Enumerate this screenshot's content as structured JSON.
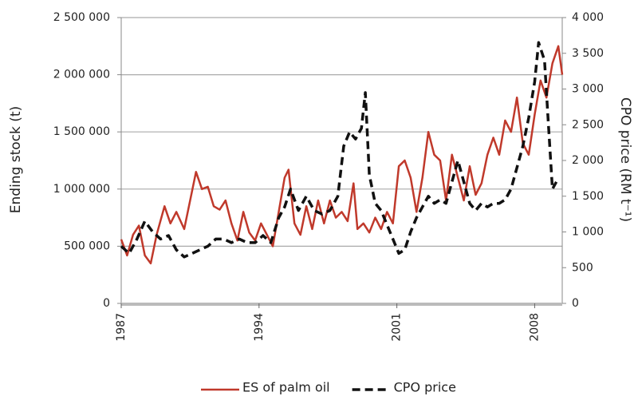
{
  "chart_data": {
    "type": "line",
    "y_label": "Ending stock (t)",
    "y2_label": "CPO price (RM t⁻¹)",
    "xlim": [
      1987,
      2009.4
    ],
    "xticks": [
      1987,
      1994,
      2001,
      2008
    ],
    "ylim": [
      0,
      2500000
    ],
    "yticks": [
      0,
      {
        "value": 500000,
        "label": "500 000"
      },
      {
        "value": 1000000,
        "label": "1 000 000"
      },
      {
        "value": 1500000,
        "label": "1 500 000"
      },
      {
        "value": 2000000,
        "label": "2 000 000"
      },
      {
        "value": 2500000,
        "label": "2 500 000"
      }
    ],
    "y2lim": [
      0,
      4000
    ],
    "y2ticks": [
      0,
      500,
      {
        "value": 1000,
        "label": "1 000"
      },
      {
        "value": 1500,
        "label": "1 500"
      },
      {
        "value": 2000,
        "label": "2 000"
      },
      {
        "value": 2500,
        "label": "2 500"
      },
      {
        "value": 3000,
        "label": "3 000"
      },
      {
        "value": 3500,
        "label": "3 500"
      },
      {
        "value": 4000,
        "label": "4 000"
      }
    ],
    "grid": true,
    "legend": "bottom",
    "series": [
      {
        "name": "ES of palm oil",
        "color": "#c0392b",
        "dash": false,
        "x": [
          1987.0,
          1987.3,
          1987.6,
          1987.9,
          1988.2,
          1988.5,
          1988.8,
          1989.2,
          1989.5,
          1989.8,
          1990.2,
          1990.5,
          1990.8,
          1991.1,
          1991.4,
          1991.7,
          1992.0,
          1992.3,
          1992.6,
          1992.9,
          1993.2,
          1993.5,
          1993.8,
          1994.1,
          1994.4,
          1994.7,
          1995.0,
          1995.3,
          1995.5,
          1995.8,
          1996.1,
          1996.4,
          1996.7,
          1997.0,
          1997.3,
          1997.6,
          1997.9,
          1998.2,
          1998.5,
          1998.8,
          1999.0,
          1999.3,
          1999.6,
          1999.9,
          2000.2,
          2000.5,
          2000.8,
          2001.1,
          2001.4,
          2001.7,
          2002.0,
          2002.3,
          2002.6,
          2002.9,
          2003.2,
          2003.5,
          2003.8,
          2004.1,
          2004.4,
          2004.7,
          2005.0,
          2005.3,
          2005.6,
          2005.9,
          2006.2,
          2006.5,
          2006.8,
          2007.1,
          2007.4,
          2007.7,
          2008.0,
          2008.3,
          2008.6,
          2008.9,
          2009.2,
          2009.4
        ],
        "values": [
          560000,
          420000,
          600000,
          680000,
          420000,
          350000,
          600000,
          850000,
          700000,
          800000,
          650000,
          900000,
          1150000,
          1000000,
          1020000,
          850000,
          820000,
          900000,
          700000,
          550000,
          800000,
          620000,
          550000,
          700000,
          600000,
          500000,
          800000,
          1100000,
          1170000,
          700000,
          600000,
          850000,
          650000,
          900000,
          700000,
          900000,
          750000,
          800000,
          720000,
          1050000,
          650000,
          700000,
          620000,
          750000,
          650000,
          800000,
          700000,
          1200000,
          1250000,
          1100000,
          800000,
          1100000,
          1500000,
          1300000,
          1250000,
          900000,
          1300000,
          1100000,
          900000,
          1200000,
          950000,
          1050000,
          1300000,
          1450000,
          1300000,
          1600000,
          1500000,
          1800000,
          1400000,
          1300000,
          1650000,
          1950000,
          1800000,
          2100000,
          2250000,
          2000000
        ]
      },
      {
        "name": "CPO price",
        "color": "#111111",
        "dash": true,
        "axis": "y2",
        "x": [
          1987.0,
          1987.4,
          1987.8,
          1988.2,
          1988.6,
          1989.0,
          1989.4,
          1989.8,
          1990.2,
          1990.6,
          1991.0,
          1991.4,
          1991.8,
          1992.2,
          1992.6,
          1993.0,
          1993.4,
          1993.8,
          1994.2,
          1994.6,
          1995.0,
          1995.3,
          1995.6,
          1996.0,
          1996.4,
          1996.8,
          1997.2,
          1997.6,
          1998.0,
          1998.3,
          1998.6,
          1998.9,
          1999.2,
          1999.4,
          1999.6,
          1999.9,
          2000.2,
          2000.5,
          2000.8,
          2001.1,
          2001.4,
          2001.7,
          2002.0,
          2002.3,
          2002.6,
          2002.9,
          2003.2,
          2003.5,
          2003.8,
          2004.1,
          2004.4,
          2004.7,
          2005.0,
          2005.3,
          2005.6,
          2005.9,
          2006.2,
          2006.5,
          2006.8,
          2007.1,
          2007.4,
          2007.7,
          2008.0,
          2008.2,
          2008.5,
          2008.7,
          2008.9,
          2009.1
        ],
        "values": [
          800,
          700,
          900,
          1150,
          1000,
          900,
          950,
          750,
          650,
          700,
          750,
          800,
          900,
          900,
          850,
          900,
          850,
          850,
          950,
          850,
          1200,
          1350,
          1600,
          1300,
          1500,
          1300,
          1250,
          1300,
          1500,
          2200,
          2400,
          2300,
          2450,
          2950,
          1800,
          1400,
          1300,
          1100,
          900,
          700,
          750,
          1000,
          1200,
          1350,
          1500,
          1400,
          1450,
          1400,
          1700,
          2000,
          1700,
          1400,
          1300,
          1400,
          1350,
          1400,
          1400,
          1450,
          1600,
          1900,
          2200,
          2600,
          3100,
          3650,
          3400,
          2500,
          1600,
          1700
        ]
      }
    ]
  }
}
